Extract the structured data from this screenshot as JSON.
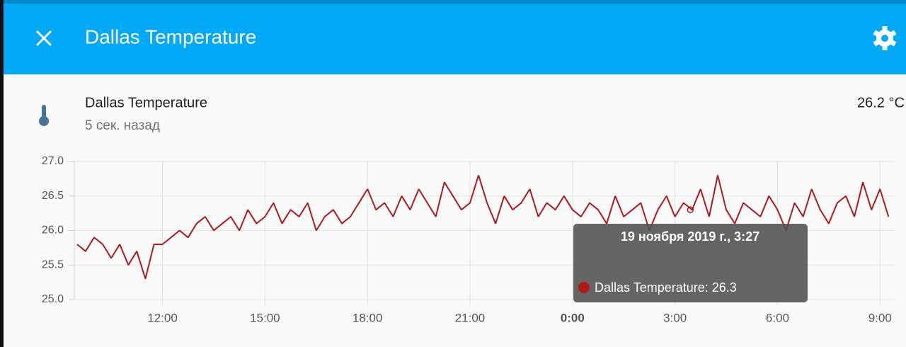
{
  "header": {
    "title": "Dallas Temperature"
  },
  "entity": {
    "name": "Dallas Temperature",
    "last_changed": "5 сек. назад",
    "state": "26.2 °C"
  },
  "chart_data": {
    "type": "line",
    "x": [
      9.5,
      9.75,
      10,
      10.25,
      10.5,
      10.75,
      11,
      11.25,
      11.5,
      11.75,
      12,
      12.25,
      12.5,
      12.75,
      13,
      13.25,
      13.5,
      13.75,
      14,
      14.25,
      14.5,
      14.75,
      15,
      15.25,
      15.5,
      15.75,
      16,
      16.25,
      16.5,
      16.75,
      17,
      17.25,
      17.5,
      17.75,
      18,
      18.25,
      18.5,
      18.75,
      19,
      19.25,
      19.5,
      19.75,
      20,
      20.25,
      20.5,
      20.75,
      21,
      21.25,
      21.5,
      21.75,
      22,
      22.25,
      22.5,
      22.75,
      23,
      23.25,
      23.5,
      23.75,
      24,
      24.25,
      24.5,
      24.75,
      25,
      25.25,
      25.5,
      25.75,
      26,
      26.25,
      26.5,
      26.75,
      27,
      27.25,
      27.5,
      27.75,
      28,
      28.25,
      28.5,
      28.75,
      29,
      29.25,
      29.5,
      29.75,
      30,
      30.25,
      30.5,
      30.75,
      31,
      31.25,
      31.5,
      31.75,
      32,
      32.25,
      32.5,
      32.75,
      33,
      33.25
    ],
    "series": [
      {
        "name": "Dallas Temperature",
        "color": "#b0181b",
        "values": [
          25.8,
          25.7,
          25.9,
          25.8,
          25.6,
          25.8,
          25.5,
          25.7,
          25.3,
          25.8,
          25.8,
          25.9,
          26.0,
          25.9,
          26.1,
          26.2,
          26.0,
          26.1,
          26.2,
          26.0,
          26.3,
          26.1,
          26.2,
          26.4,
          26.1,
          26.3,
          26.2,
          26.4,
          26.0,
          26.2,
          26.3,
          26.1,
          26.2,
          26.4,
          26.6,
          26.3,
          26.4,
          26.2,
          26.5,
          26.3,
          26.6,
          26.4,
          26.2,
          26.7,
          26.5,
          26.3,
          26.4,
          26.8,
          26.4,
          26.1,
          26.5,
          26.3,
          26.4,
          26.6,
          26.2,
          26.4,
          26.3,
          26.5,
          26.3,
          26.2,
          26.4,
          26.3,
          26.1,
          26.5,
          26.2,
          26.3,
          26.4,
          26.0,
          26.3,
          26.5,
          26.2,
          26.4,
          26.3,
          26.6,
          26.2,
          26.8,
          26.3,
          26.1,
          26.4,
          26.3,
          26.2,
          26.5,
          26.3,
          26.0,
          26.4,
          26.2,
          26.6,
          26.3,
          26.1,
          26.4,
          26.5,
          26.2,
          26.7,
          26.3,
          26.6,
          26.2
        ]
      }
    ],
    "xlim": [
      9.42,
      33.45
    ],
    "xticks": [
      {
        "value": 12,
        "label": "12:00"
      },
      {
        "value": 15,
        "label": "15:00"
      },
      {
        "value": 18,
        "label": "18:00"
      },
      {
        "value": 21,
        "label": "21:00"
      },
      {
        "value": 24,
        "label": "0:00",
        "bold": true
      },
      {
        "value": 27,
        "label": "3:00"
      },
      {
        "value": 30,
        "label": "6:00"
      },
      {
        "value": 33,
        "label": "9:00"
      }
    ],
    "ylim": [
      25.0,
      27.0
    ],
    "yticks": [
      {
        "value": 25.0,
        "label": "25.0"
      },
      {
        "value": 25.5,
        "label": "25.5"
      },
      {
        "value": 26.0,
        "label": "26.0"
      },
      {
        "value": 26.5,
        "label": "26.5"
      },
      {
        "value": 27.0,
        "label": "27.0"
      }
    ],
    "grid": true,
    "tooltip": {
      "title": "19 ноября 2019 г., 3:27",
      "label": "Dallas Temperature: 26.3",
      "x": 27.45,
      "value": 26.3
    }
  }
}
